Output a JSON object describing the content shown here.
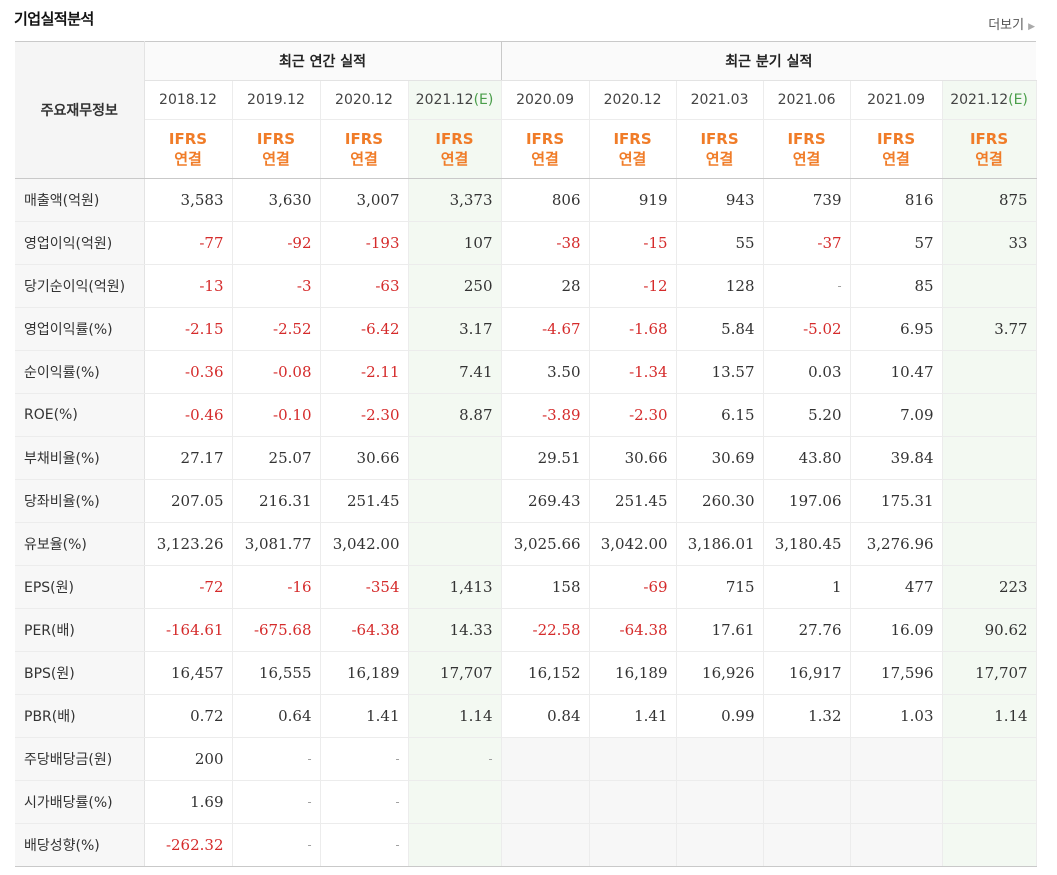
{
  "header": {
    "title": "기업실적분석",
    "more": "더보기"
  },
  "table": {
    "label_header": "주요재무정보",
    "annual_header": "최근 연간 실적",
    "quarter_header": "최근 분기 실적",
    "periods": [
      "2018.12",
      "2019.12",
      "2020.12",
      "2021.12",
      "2020.09",
      "2020.12",
      "2021.03",
      "2021.06",
      "2021.09",
      "2021.12"
    ],
    "estimate_mark": "(E)",
    "ifrs_line1": "IFRS",
    "ifrs_line2": "연결",
    "rows": [
      {
        "label": "매출액(억원)",
        "values": [
          "3,583",
          "3,630",
          "3,007",
          "3,373",
          "806",
          "919",
          "943",
          "739",
          "816",
          "875"
        ]
      },
      {
        "label": "영업이익(억원)",
        "values": [
          "-77",
          "-92",
          "-193",
          "107",
          "-38",
          "-15",
          "55",
          "-37",
          "57",
          "33"
        ]
      },
      {
        "label": "당기순이익(억원)",
        "values": [
          "-13",
          "-3",
          "-63",
          "250",
          "28",
          "-12",
          "128",
          "-",
          "85",
          ""
        ]
      },
      {
        "label": "영업이익률(%)",
        "values": [
          "-2.15",
          "-2.52",
          "-6.42",
          "3.17",
          "-4.67",
          "-1.68",
          "5.84",
          "-5.02",
          "6.95",
          "3.77"
        ]
      },
      {
        "label": "순이익률(%)",
        "values": [
          "-0.36",
          "-0.08",
          "-2.11",
          "7.41",
          "3.50",
          "-1.34",
          "13.57",
          "0.03",
          "10.47",
          ""
        ]
      },
      {
        "label": "ROE(%)",
        "values": [
          "-0.46",
          "-0.10",
          "-2.30",
          "8.87",
          "-3.89",
          "-2.30",
          "6.15",
          "5.20",
          "7.09",
          ""
        ]
      },
      {
        "label": "부채비율(%)",
        "values": [
          "27.17",
          "25.07",
          "30.66",
          "",
          "29.51",
          "30.66",
          "30.69",
          "43.80",
          "39.84",
          ""
        ]
      },
      {
        "label": "당좌비율(%)",
        "values": [
          "207.05",
          "216.31",
          "251.45",
          "",
          "269.43",
          "251.45",
          "260.30",
          "197.06",
          "175.31",
          ""
        ]
      },
      {
        "label": "유보율(%)",
        "values": [
          "3,123.26",
          "3,081.77",
          "3,042.00",
          "",
          "3,025.66",
          "3,042.00",
          "3,186.01",
          "3,180.45",
          "3,276.96",
          ""
        ]
      },
      {
        "label": "EPS(원)",
        "values": [
          "-72",
          "-16",
          "-354",
          "1,413",
          "158",
          "-69",
          "715",
          "1",
          "477",
          "223"
        ]
      },
      {
        "label": "PER(배)",
        "values": [
          "-164.61",
          "-675.68",
          "-64.38",
          "14.33",
          "-22.58",
          "-64.38",
          "17.61",
          "27.76",
          "16.09",
          "90.62"
        ]
      },
      {
        "label": "BPS(원)",
        "values": [
          "16,457",
          "16,555",
          "16,189",
          "17,707",
          "16,152",
          "16,189",
          "16,926",
          "16,917",
          "17,596",
          "17,707"
        ]
      },
      {
        "label": "PBR(배)",
        "values": [
          "0.72",
          "0.64",
          "1.41",
          "1.14",
          "0.84",
          "1.41",
          "0.99",
          "1.32",
          "1.03",
          "1.14"
        ]
      },
      {
        "label": "주당배당금(원)",
        "values": [
          "200",
          "-",
          "-",
          "-",
          null,
          null,
          null,
          null,
          null,
          null
        ]
      },
      {
        "label": "시가배당률(%)",
        "values": [
          "1.69",
          "-",
          "-",
          "",
          null,
          null,
          null,
          null,
          null,
          null
        ]
      },
      {
        "label": "배당성향(%)",
        "values": [
          "-262.32",
          "-",
          "-",
          "",
          null,
          null,
          null,
          null,
          null,
          null
        ]
      }
    ]
  }
}
